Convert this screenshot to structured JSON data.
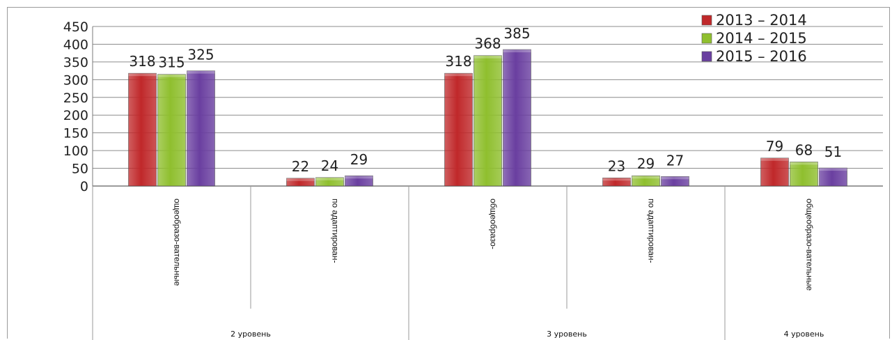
{
  "chart_data": {
    "type": "bar",
    "categories": [
      "ощеобразо-вательные",
      "по адаптирован-",
      "общеобразо-",
      "по адаптирован-",
      "общеобразо-вательные"
    ],
    "groups": [
      {
        "label": "2 уровень",
        "categories": [
          0,
          1
        ]
      },
      {
        "label": "3 уровень",
        "categories": [
          2,
          3
        ]
      },
      {
        "label": "4 уровень",
        "categories": [
          4
        ]
      }
    ],
    "series": [
      {
        "name": "2013 – 2014",
        "values": [
          318,
          22,
          318,
          23,
          79
        ],
        "color": "#c0282a"
      },
      {
        "name": "2014 – 2015",
        "values": [
          315,
          24,
          368,
          29,
          68
        ],
        "color": "#8fbf2e"
      },
      {
        "name": "2015 – 2016",
        "values": [
          325,
          29,
          385,
          27,
          51
        ],
        "color": "#6a3fa0"
      }
    ],
    "ylim": [
      0,
      450
    ],
    "yticks": [
      0,
      50,
      100,
      150,
      200,
      250,
      300,
      350,
      400,
      450
    ],
    "grid": true,
    "legend": "top-right",
    "title": "",
    "xlabel": "",
    "ylabel": ""
  }
}
